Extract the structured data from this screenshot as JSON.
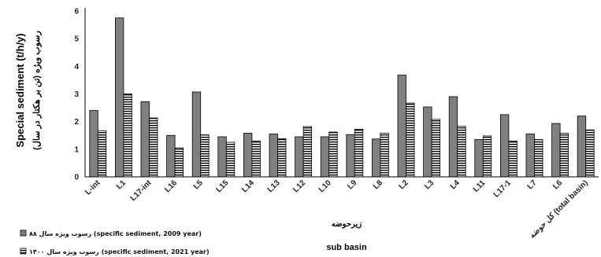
{
  "chart_data": {
    "type": "bar",
    "categories": [
      "L-int",
      "L1",
      "L17-int",
      "L16",
      "L5",
      "L15",
      "L14",
      "L13",
      "L12",
      "L10",
      "L9",
      "L8",
      "L2",
      "L3",
      "L4",
      "L11",
      "L17-1",
      "L7",
      "L6",
      "کل حوضه (total basin)"
    ],
    "series": [
      {
        "name": "رسوب ویژه سال ۸۸ (specific sediment, 2009 year)",
        "values": [
          2.4,
          5.75,
          2.72,
          1.5,
          3.07,
          1.45,
          1.58,
          1.55,
          1.45,
          1.45,
          1.53,
          1.37,
          3.68,
          2.53,
          2.9,
          1.35,
          2.25,
          1.55,
          1.93,
          2.2
        ],
        "color": "#808080"
      },
      {
        "name": "رسوب ویژه سال ۱۴۰۰ (specific sediment, 2021 year)",
        "values": [
          1.67,
          3.0,
          2.13,
          1.05,
          1.52,
          1.25,
          1.3,
          1.38,
          1.82,
          1.62,
          1.72,
          1.58,
          2.67,
          2.08,
          1.83,
          1.48,
          1.3,
          1.35,
          1.58,
          1.7
        ],
        "color": "#ffffff",
        "pattern": "horizontal-stripes"
      }
    ],
    "ylim": [
      0,
      6
    ],
    "yticks": [
      0,
      1,
      2,
      3,
      4,
      5,
      6
    ],
    "ylabel": "Special sediment (t/h/y)",
    "ylabel_fa": "رسوب ویژه (تن بر هکتار در سال)",
    "xlabel_fa": "زیرحوضه",
    "xlabel": "sub basin",
    "grid": false,
    "legend_position": "bottom-left"
  }
}
